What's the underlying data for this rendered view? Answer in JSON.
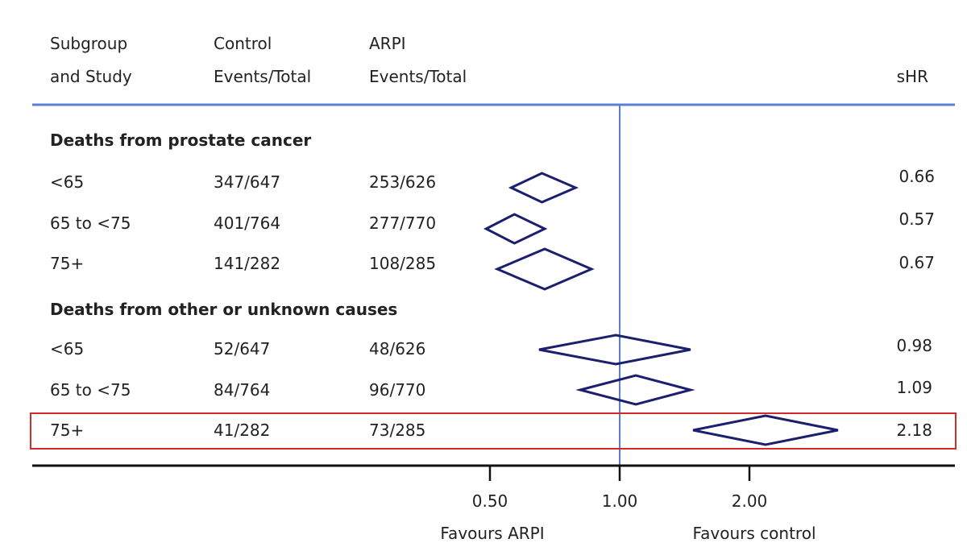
{
  "chart_data": {
    "type": "forest",
    "columns": {
      "subgroup": [
        "Subgroup",
        "and Study"
      ],
      "control": [
        "Control",
        "Events/Total"
      ],
      "arpi": [
        "ARPI",
        "Events/Total"
      ],
      "shr": "sHR"
    },
    "sections": [
      {
        "title": "Deaths from prostate cancer",
        "rows": [
          {
            "label": "<65",
            "control": "347/647",
            "arpi": "253/626",
            "shr": "0.66",
            "hr": 0.66,
            "ci": [
              0.56,
              0.79
            ]
          },
          {
            "label": "65 to <75",
            "control": "401/764",
            "arpi": "277/770",
            "shr": "0.57",
            "hr": 0.57,
            "ci": [
              0.49,
              0.67
            ]
          },
          {
            "label": "75+",
            "control": "141/282",
            "arpi": "108/285",
            "shr": "0.67",
            "hr": 0.67,
            "ci": [
              0.52,
              0.86
            ]
          }
        ]
      },
      {
        "title": "Deaths from other or unknown causes",
        "rows": [
          {
            "label": "<65",
            "control": "52/647",
            "arpi": "48/626",
            "shr": "0.98",
            "hr": 0.98,
            "ci": [
              0.65,
              1.46
            ]
          },
          {
            "label": "65 to <75",
            "control": "84/764",
            "arpi": "96/770",
            "shr": "1.09",
            "hr": 1.09,
            "ci": [
              0.81,
              1.46
            ]
          },
          {
            "label": "75+",
            "control": "41/282",
            "arpi": "73/285",
            "shr": "2.18",
            "hr": 2.18,
            "ci": [
              1.48,
              3.21
            ],
            "highlight": true
          }
        ]
      }
    ],
    "x_scale": "log",
    "xticks": [
      0.5,
      1.0,
      2.0
    ],
    "xtick_labels": [
      "0.50",
      "1.00",
      "2.00"
    ],
    "reference_line": 1.0,
    "favours_left": "Favours ARPI",
    "favours_right": "Favours control",
    "colors": {
      "diamond": "#1a1f6e",
      "reference": "#5b7fd4",
      "header_rule": "#5b7fd4",
      "highlight": "#d22b2b",
      "axis": "#111111"
    }
  }
}
